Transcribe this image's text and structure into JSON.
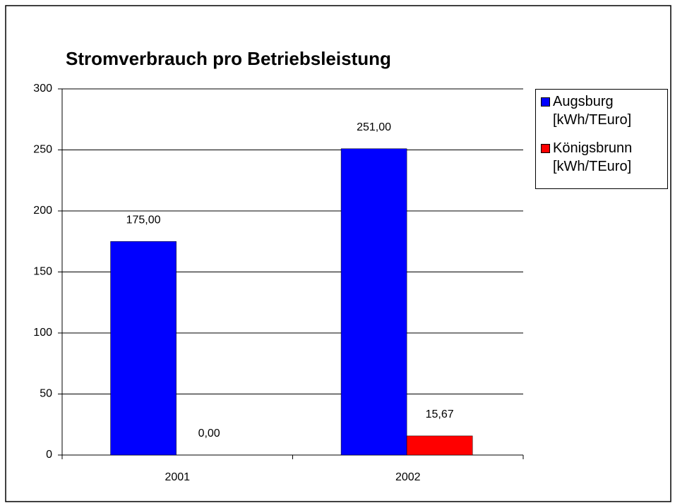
{
  "chart_data": {
    "type": "bar",
    "title": "Stromverbrauch pro Betriebsleistung",
    "categories": [
      "2001",
      "2002"
    ],
    "series": [
      {
        "name": "Augsburg [kWh/TEuro]",
        "color": "#0000ff",
        "values": [
          175,
          251
        ],
        "value_labels": [
          "175,00",
          "251,00"
        ]
      },
      {
        "name": "Königsbrunn [kWh/TEuro]",
        "color": "#ff0000",
        "values": [
          0,
          15.67
        ],
        "value_labels": [
          "0,00",
          "15,67"
        ]
      }
    ],
    "ylim": [
      0,
      300
    ],
    "yticks": [
      0,
      50,
      100,
      150,
      200,
      250,
      300
    ],
    "grid": true,
    "legend": "right"
  }
}
